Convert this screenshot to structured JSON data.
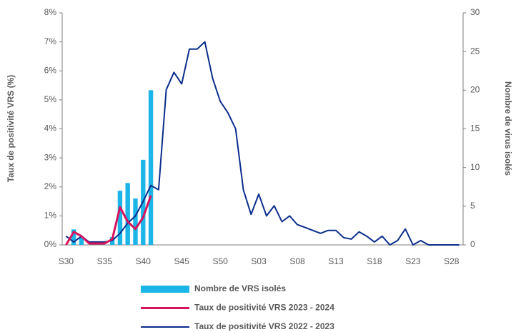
{
  "chart_data": {
    "type": "bar_line",
    "y_label": "Taux de positivité VRS (%)",
    "y2_label": "Nombre de virus isolés",
    "categories": [
      "S30",
      null,
      null,
      null,
      null,
      "S35",
      null,
      null,
      null,
      null,
      "S40",
      null,
      null,
      null,
      null,
      "S45",
      null,
      null,
      null,
      null,
      "S50",
      null,
      null,
      null,
      null,
      "S03",
      null,
      null,
      null,
      null,
      "S08",
      null,
      null,
      null,
      null,
      "S13",
      null,
      null,
      null,
      null,
      "S18",
      null,
      null,
      null,
      null,
      "S23",
      null,
      null,
      null,
      null,
      "S28",
      null
    ],
    "ylim": [
      0,
      8
    ],
    "yticks": [
      {
        "value": 0,
        "label": "0%"
      },
      {
        "value": 1,
        "label": "1%"
      },
      {
        "value": 2,
        "label": "2%"
      },
      {
        "value": 3,
        "label": "3%"
      },
      {
        "value": 4,
        "label": "4%"
      },
      {
        "value": 5,
        "label": "5%"
      },
      {
        "value": 6,
        "label": "6%"
      },
      {
        "value": 7,
        "label": "7%"
      },
      {
        "value": 8,
        "label": "8%"
      }
    ],
    "y2lim": [
      0,
      30
    ],
    "y2ticks": [
      0,
      5,
      10,
      15,
      20,
      25,
      30
    ],
    "series": [
      {
        "name": "Nombre de VRS isolés",
        "type": "bar",
        "axis": "y2",
        "color": "#1cb5e8",
        "values": [
          0,
          2,
          1,
          0,
          0,
          0,
          1,
          7,
          8,
          6,
          11,
          20,
          null,
          null,
          null,
          null,
          null,
          null,
          null,
          null,
          null,
          null,
          null,
          null,
          null,
          null,
          null,
          null,
          null,
          null,
          null,
          null,
          null,
          null,
          null,
          null,
          null,
          null,
          null,
          null,
          null,
          null,
          null,
          null,
          null,
          null,
          null,
          null,
          null,
          null,
          null,
          null
        ]
      },
      {
        "name": "Taux de positivité VRS 2023 - 2024",
        "type": "line",
        "axis": "y",
        "color": "#d6145e",
        "values": [
          0,
          0.45,
          0.3,
          0.05,
          0.05,
          0.05,
          0.2,
          1.3,
          0.8,
          0.55,
          0.95,
          1.7,
          null,
          null,
          null,
          null,
          null,
          null,
          null,
          null,
          null,
          null,
          null,
          null,
          null,
          null,
          null,
          null,
          null,
          null,
          null,
          null,
          null,
          null,
          null,
          null,
          null,
          null,
          null,
          null,
          null,
          null,
          null,
          null,
          null,
          null,
          null,
          null,
          null,
          null,
          null,
          null
        ]
      },
      {
        "name": "Taux de positivité VRS 2022 - 2023",
        "type": "line",
        "axis": "y",
        "color": "#0b2d8c",
        "values": [
          0.3,
          0.1,
          0.3,
          0.1,
          0.1,
          0.1,
          0.15,
          0.4,
          0.75,
          1.0,
          1.5,
          2.05,
          1.9,
          5.35,
          5.95,
          5.55,
          6.75,
          6.75,
          7.0,
          5.75,
          4.95,
          4.55,
          4.0,
          1.9,
          1.05,
          1.75,
          1.0,
          1.35,
          0.8,
          1.0,
          0.7,
          0.6,
          0.5,
          0.4,
          0.5,
          0.5,
          0.25,
          0.2,
          0.45,
          0.3,
          0.1,
          0.3,
          0,
          0.15,
          0.55,
          0,
          0.15,
          0,
          0,
          0,
          0,
          0
        ]
      }
    ]
  }
}
